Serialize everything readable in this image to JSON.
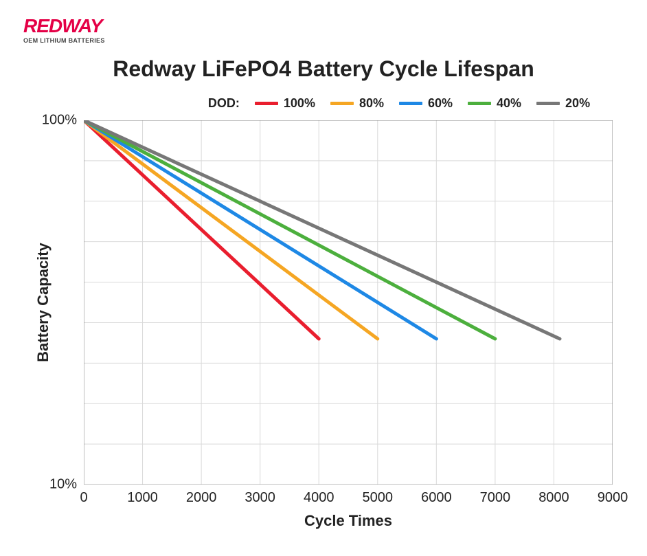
{
  "logo": {
    "brand": "REDWAY",
    "subtitle": "OEM LITHIUM BATTERIES",
    "color": "#e40046"
  },
  "chart": {
    "type": "line",
    "title": "Redway LiFePO4 Battery Cycle Lifespan",
    "title_fontsize": 32,
    "xlabel": "Cycle Times",
    "ylabel": "Battery Capacity",
    "label_fontsize": 22,
    "tick_fontsize": 20,
    "background_color": "#ffffff",
    "grid_color": "#d9d9d9",
    "axis_color": "#808080",
    "xlim": [
      0,
      9000
    ],
    "xtick_step": 1000,
    "xticks": [
      0,
      1000,
      2000,
      3000,
      4000,
      5000,
      6000,
      7000,
      8000,
      9000
    ],
    "yticks_labels": [
      "100%",
      "10%"
    ],
    "yticks_values": [
      100,
      10
    ],
    "ygrid_fractions": [
      0,
      1,
      2,
      3,
      4,
      5,
      6,
      7,
      8,
      9
    ],
    "line_width": 5,
    "legend": {
      "title": "DOD:",
      "fontsize": 18,
      "position": "top-right"
    },
    "series": [
      {
        "name": "100%",
        "color": "#e91e2e",
        "points": [
          [
            0,
            100
          ],
          [
            4000,
            46
          ]
        ]
      },
      {
        "name": "80%",
        "color": "#f5a623",
        "points": [
          [
            0,
            100
          ],
          [
            5000,
            46
          ]
        ]
      },
      {
        "name": "60%",
        "color": "#1e88e5",
        "points": [
          [
            0,
            100
          ],
          [
            6000,
            46
          ]
        ]
      },
      {
        "name": "40%",
        "color": "#4caf3d",
        "points": [
          [
            0,
            100
          ],
          [
            7000,
            46
          ]
        ]
      },
      {
        "name": "20%",
        "color": "#777777",
        "points": [
          [
            0,
            100
          ],
          [
            8100,
            46
          ]
        ]
      }
    ]
  }
}
